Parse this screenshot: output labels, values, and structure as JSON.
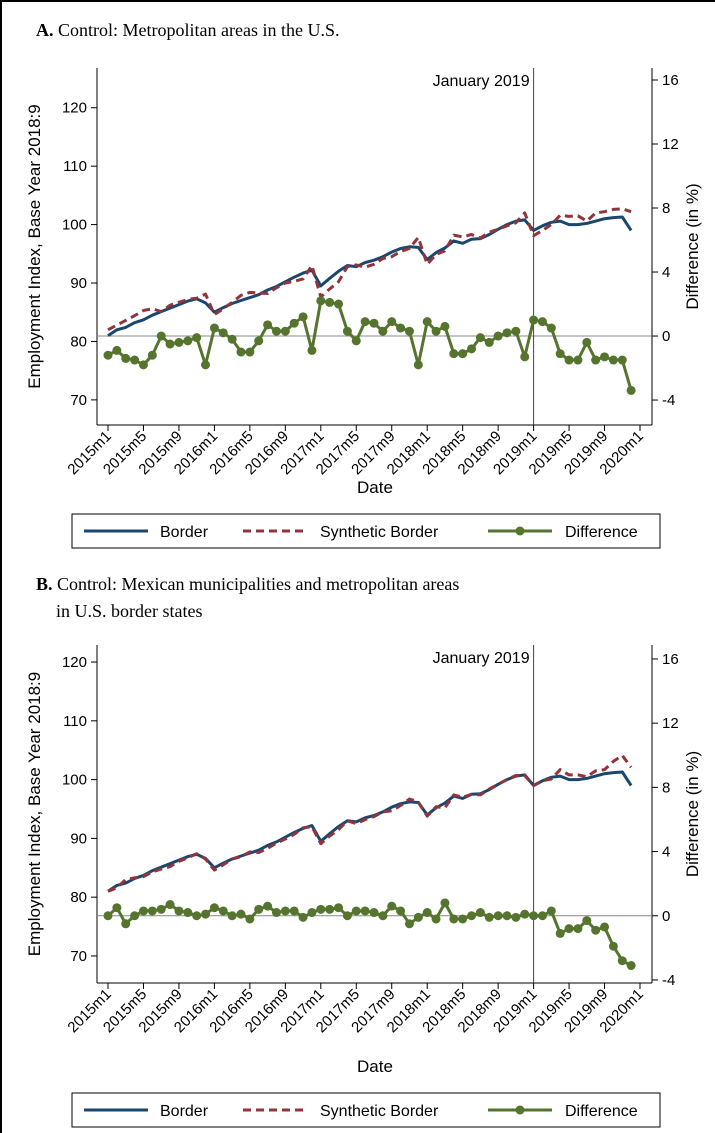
{
  "chart_data": [
    {
      "type": "line",
      "label": "A.",
      "title": [
        "Control: Metropolitan areas in the U.S."
      ],
      "y_label": "Employment Index, Base Year 2018:9",
      "y2_label": "Difference (in %)",
      "x_label": "Date",
      "annotation": "January 2019",
      "vline_category": "2019m1",
      "y2_zero_line": true,
      "categories": [
        "2015m1",
        null,
        null,
        null,
        "2015m5",
        null,
        null,
        null,
        "2015m9",
        null,
        null,
        null,
        "2016m1",
        null,
        null,
        null,
        "2016m5",
        null,
        null,
        null,
        "2016m9",
        null,
        null,
        null,
        "2017m1",
        null,
        null,
        null,
        "2017m5",
        null,
        null,
        null,
        "2017m9",
        null,
        null,
        null,
        "2018m1",
        null,
        null,
        null,
        "2018m5",
        null,
        null,
        null,
        "2018m9",
        null,
        null,
        null,
        "2019m1",
        null,
        null,
        null,
        "2019m5",
        null,
        null,
        null,
        "2019m9",
        null,
        null,
        null,
        "2020m1"
      ],
      "ylim": [
        65.7,
        126.8
      ],
      "yticks": [
        70,
        80,
        90,
        100,
        110,
        120
      ],
      "y2lim": [
        -5.56,
        16.75
      ],
      "y2ticks": [
        -4,
        0,
        4,
        8,
        12,
        16
      ],
      "series": [
        {
          "name": "Border",
          "color": "#1a476f",
          "dash": false,
          "markers": false,
          "values": [
            81,
            82,
            82.4,
            83.2,
            83.7,
            84.5,
            85.1,
            85.7,
            86.3,
            86.9,
            87.3,
            86.6,
            85,
            85.8,
            86.5,
            87,
            87.5,
            88,
            88.8,
            89.4,
            90.2,
            91,
            91.7,
            92.2,
            89.5,
            90.8,
            92,
            93,
            92.8,
            93.5,
            93.9,
            94.5,
            95.3,
            95.9,
            96.2,
            96.1,
            94,
            95.2,
            96,
            97.2,
            96.8,
            97.5,
            97.6,
            98.3,
            99.2,
            100,
            100.6,
            100.8,
            99,
            99.8,
            100.4,
            100.6,
            100,
            100,
            100.2,
            100.6,
            101,
            101.2,
            101.3,
            99,
            null
          ]
        },
        {
          "name": "Synthetic Border",
          "color": "#90353b",
          "dash": true,
          "markers": false,
          "values": [
            82,
            82.8,
            83.6,
            84.4,
            85.3,
            85.6,
            85.1,
            86.2,
            86.7,
            87.2,
            87.4,
            88.1,
            84.6,
            85.6,
            86.7,
            87.9,
            88.4,
            88.3,
            88.2,
            89.2,
            90,
            90.3,
            90.7,
            93,
            87.6,
            89,
            90.2,
            92.8,
            93.1,
            92.7,
            93.2,
            94.2,
            94.5,
            95.4,
            95.9,
            97.8,
            93.2,
            94.9,
            95.5,
            98.2,
            97.9,
            98.3,
            97.7,
            98.7,
            99.2,
            99.8,
            100.3,
            102,
            98.1,
            99,
            100,
            101.6,
            101.4,
            101.5,
            100.6,
            102,
            102.2,
            102.6,
            102.7,
            102.2,
            null
          ]
        },
        {
          "name": "Difference",
          "color": "#55752f",
          "dash": false,
          "markers": true,
          "axis": "y2",
          "values": [
            -1.2,
            -0.9,
            -1.4,
            -1.5,
            -1.8,
            -1.2,
            0,
            -0.5,
            -0.4,
            -0.3,
            -0.1,
            -1.8,
            0.5,
            0.2,
            -0.2,
            -1,
            -1,
            -0.3,
            0.7,
            0.3,
            0.3,
            0.8,
            1.2,
            -0.9,
            2.2,
            2.1,
            2,
            0.3,
            -0.3,
            0.9,
            0.8,
            0.3,
            0.9,
            0.5,
            0.3,
            -1.8,
            0.9,
            0.3,
            0.6,
            -1.1,
            -1.1,
            -0.8,
            -0.1,
            -0.4,
            0,
            0.2,
            0.3,
            -1.3,
            1,
            0.9,
            0.5,
            -1.1,
            -1.5,
            -1.5,
            -0.4,
            -1.5,
            -1.3,
            -1.5,
            -1.5,
            -3.4,
            null
          ]
        }
      ]
    },
    {
      "type": "line",
      "label": "B.",
      "title": [
        "Control: Mexican municipalities and metropolitan areas",
        "in U.S. border states"
      ],
      "y_label": "Employment Index, Base Year 2018:9",
      "y2_label": "Difference (in %)",
      "x_label": "Date",
      "annotation": "January 2019",
      "vline_category": "2019m1",
      "y2_zero_line": true,
      "categories": [
        "2015m1",
        null,
        null,
        null,
        "2015m5",
        null,
        null,
        null,
        "2015m9",
        null,
        null,
        null,
        "2016m1",
        null,
        null,
        null,
        "2016m5",
        null,
        null,
        null,
        "2016m9",
        null,
        null,
        null,
        "2017m1",
        null,
        null,
        null,
        "2017m5",
        null,
        null,
        null,
        "2017m9",
        null,
        null,
        null,
        "2018m1",
        null,
        null,
        null,
        "2018m5",
        null,
        null,
        null,
        "2018m9",
        null,
        null,
        null,
        "2019m1",
        null,
        null,
        null,
        "2019m5",
        null,
        null,
        null,
        "2019m9",
        null,
        null,
        null,
        "2020m1"
      ],
      "ylim": [
        65.4,
        122.9
      ],
      "yticks": [
        70,
        80,
        90,
        100,
        110,
        120
      ],
      "y2lim": [
        -4.19,
        16.87
      ],
      "y2ticks": [
        -4,
        0,
        4,
        8,
        12,
        16
      ],
      "series": [
        {
          "name": "Border",
          "color": "#1a476f",
          "dash": false,
          "markers": false,
          "values": [
            81,
            82,
            82.4,
            83.2,
            83.7,
            84.5,
            85.1,
            85.7,
            86.3,
            86.9,
            87.3,
            86.6,
            85,
            85.8,
            86.5,
            87,
            87.5,
            88,
            88.8,
            89.4,
            90.2,
            91,
            91.7,
            92.2,
            89.5,
            90.8,
            92,
            93,
            92.8,
            93.5,
            93.9,
            94.5,
            95.3,
            95.9,
            96.2,
            96.1,
            94,
            95.2,
            96,
            97.2,
            96.8,
            97.5,
            97.6,
            98.3,
            99.2,
            100,
            100.6,
            100.8,
            99,
            99.8,
            100.4,
            100.6,
            100,
            100,
            100.2,
            100.6,
            101,
            101.2,
            101.3,
            99,
            null
          ]
        },
        {
          "name": "Synthetic Border",
          "color": "#90353b",
          "dash": true,
          "markers": false,
          "values": [
            81,
            81.6,
            83,
            83.3,
            83.5,
            84.3,
            84.8,
            85.2,
            86.1,
            86.7,
            87.4,
            86.5,
            84.6,
            85.5,
            86.5,
            86.9,
            87.7,
            87.6,
            88.3,
            89.2,
            89.9,
            90.7,
            91.8,
            92,
            89.1,
            90.4,
            91.5,
            93,
            92.5,
            93.2,
            93.7,
            94.5,
            94.7,
            95.6,
            96.7,
            96.2,
            93.8,
            95.4,
            95.2,
            97.4,
            97,
            97.5,
            97.4,
            98.4,
            99.2,
            100,
            100.7,
            100.7,
            99,
            99.8,
            100.1,
            101.7,
            100.8,
            100.8,
            100.5,
            101.5,
            101.7,
            103.1,
            104.1,
            102.1,
            null
          ]
        },
        {
          "name": "Difference",
          "color": "#55752f",
          "dash": false,
          "markers": true,
          "axis": "y2",
          "values": [
            0,
            0.5,
            -0.5,
            0,
            0.3,
            0.3,
            0.4,
            0.7,
            0.3,
            0.2,
            0,
            0.1,
            0.5,
            0.3,
            0,
            0.1,
            -0.2,
            0.4,
            0.6,
            0.2,
            0.3,
            0.3,
            -0.1,
            0.2,
            0.4,
            0.4,
            0.5,
            0,
            0.3,
            0.3,
            0.2,
            0,
            0.6,
            0.3,
            -0.5,
            -0.1,
            0.2,
            -0.2,
            0.8,
            -0.2,
            -0.2,
            0,
            0.2,
            -0.1,
            0,
            0,
            -0.1,
            0.1,
            0,
            0,
            0.3,
            -1.1,
            -0.8,
            -0.8,
            -0.3,
            -0.9,
            -0.7,
            -1.9,
            -2.8,
            -3.1,
            null
          ]
        }
      ]
    }
  ]
}
